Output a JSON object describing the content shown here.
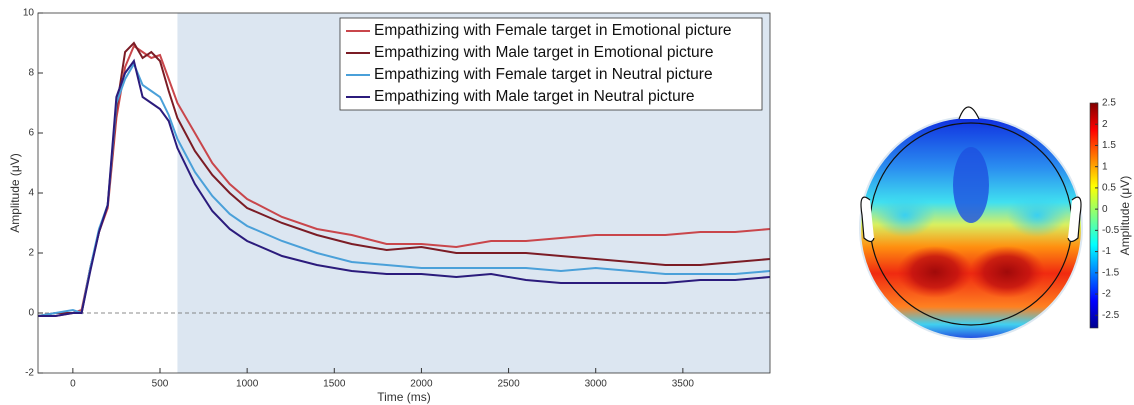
{
  "chart_data": [
    {
      "type": "line",
      "xlabel": "Time (ms)",
      "ylabel": "Amplitude (μV)",
      "x": [
        -200,
        -100,
        0,
        50,
        100,
        150,
        200,
        250,
        300,
        350,
        400,
        450,
        500,
        550,
        600,
        700,
        800,
        900,
        1000,
        1200,
        1400,
        1600,
        1800,
        2000,
        2200,
        2400,
        2600,
        2800,
        3000,
        3200,
        3400,
        3600,
        3800,
        4000
      ],
      "series": [
        {
          "name": "Empathizing with Female target in Emotional picture",
          "color": "#c9464b",
          "values": [
            -0.1,
            -0.1,
            0,
            0.1,
            1.5,
            2.7,
            3.5,
            6.5,
            8.2,
            8.9,
            8.7,
            8.5,
            8.6,
            7.8,
            7.0,
            6.0,
            5.0,
            4.3,
            3.8,
            3.2,
            2.8,
            2.6,
            2.3,
            2.3,
            2.2,
            2.4,
            2.4,
            2.5,
            2.6,
            2.6,
            2.6,
            2.7,
            2.7,
            2.8
          ]
        },
        {
          "name": "Empathizing with Male target in Emotional picture",
          "color": "#7b1c25",
          "values": [
            -0.1,
            0,
            0,
            0,
            1.5,
            2.7,
            3.6,
            6.8,
            8.7,
            9.0,
            8.5,
            8.7,
            8.4,
            7.4,
            6.5,
            5.4,
            4.6,
            4.0,
            3.5,
            3.0,
            2.6,
            2.3,
            2.1,
            2.2,
            2.0,
            2.0,
            2.0,
            1.9,
            1.8,
            1.7,
            1.6,
            1.6,
            1.7,
            1.8
          ]
        },
        {
          "name": "Empathizing with Female target in Neutral picture",
          "color": "#4aa0d9",
          "values": [
            -0.1,
            0,
            0.1,
            0,
            1.5,
            2.8,
            3.6,
            7.0,
            7.8,
            8.3,
            7.6,
            7.4,
            7.2,
            6.6,
            5.8,
            4.7,
            3.9,
            3.3,
            2.9,
            2.4,
            2.0,
            1.7,
            1.6,
            1.5,
            1.5,
            1.5,
            1.5,
            1.4,
            1.5,
            1.4,
            1.3,
            1.3,
            1.3,
            1.4
          ]
        },
        {
          "name": "Empathizing with Male target in Neutral picture",
          "color": "#2b1b7c",
          "values": [
            -0.1,
            -0.1,
            0,
            0,
            1.4,
            2.7,
            3.6,
            7.2,
            8.0,
            8.4,
            7.2,
            7.0,
            6.8,
            6.4,
            5.5,
            4.3,
            3.4,
            2.8,
            2.4,
            1.9,
            1.6,
            1.4,
            1.3,
            1.3,
            1.2,
            1.3,
            1.1,
            1.0,
            1.0,
            1.0,
            1.0,
            1.1,
            1.1,
            1.2
          ]
        }
      ],
      "xlim": [
        -200,
        4000
      ],
      "xticks": [
        0,
        500,
        1000,
        1500,
        2000,
        2500,
        3000,
        3500
      ],
      "ylim": [
        -2,
        10
      ],
      "yticks": [
        -2,
        0,
        2,
        4,
        6,
        8,
        10
      ],
      "shaded_x": [
        600,
        4000
      ],
      "hlines": [
        0
      ],
      "legend": "upper right"
    },
    {
      "type": "colorbar",
      "label": "Amplitude (μV)",
      "lim": [
        -2.8,
        2.5
      ],
      "ticks": [
        -2.5,
        -2,
        -1.5,
        -1,
        -0.5,
        0,
        0.5,
        1,
        1.5,
        2,
        2.5
      ]
    }
  ]
}
